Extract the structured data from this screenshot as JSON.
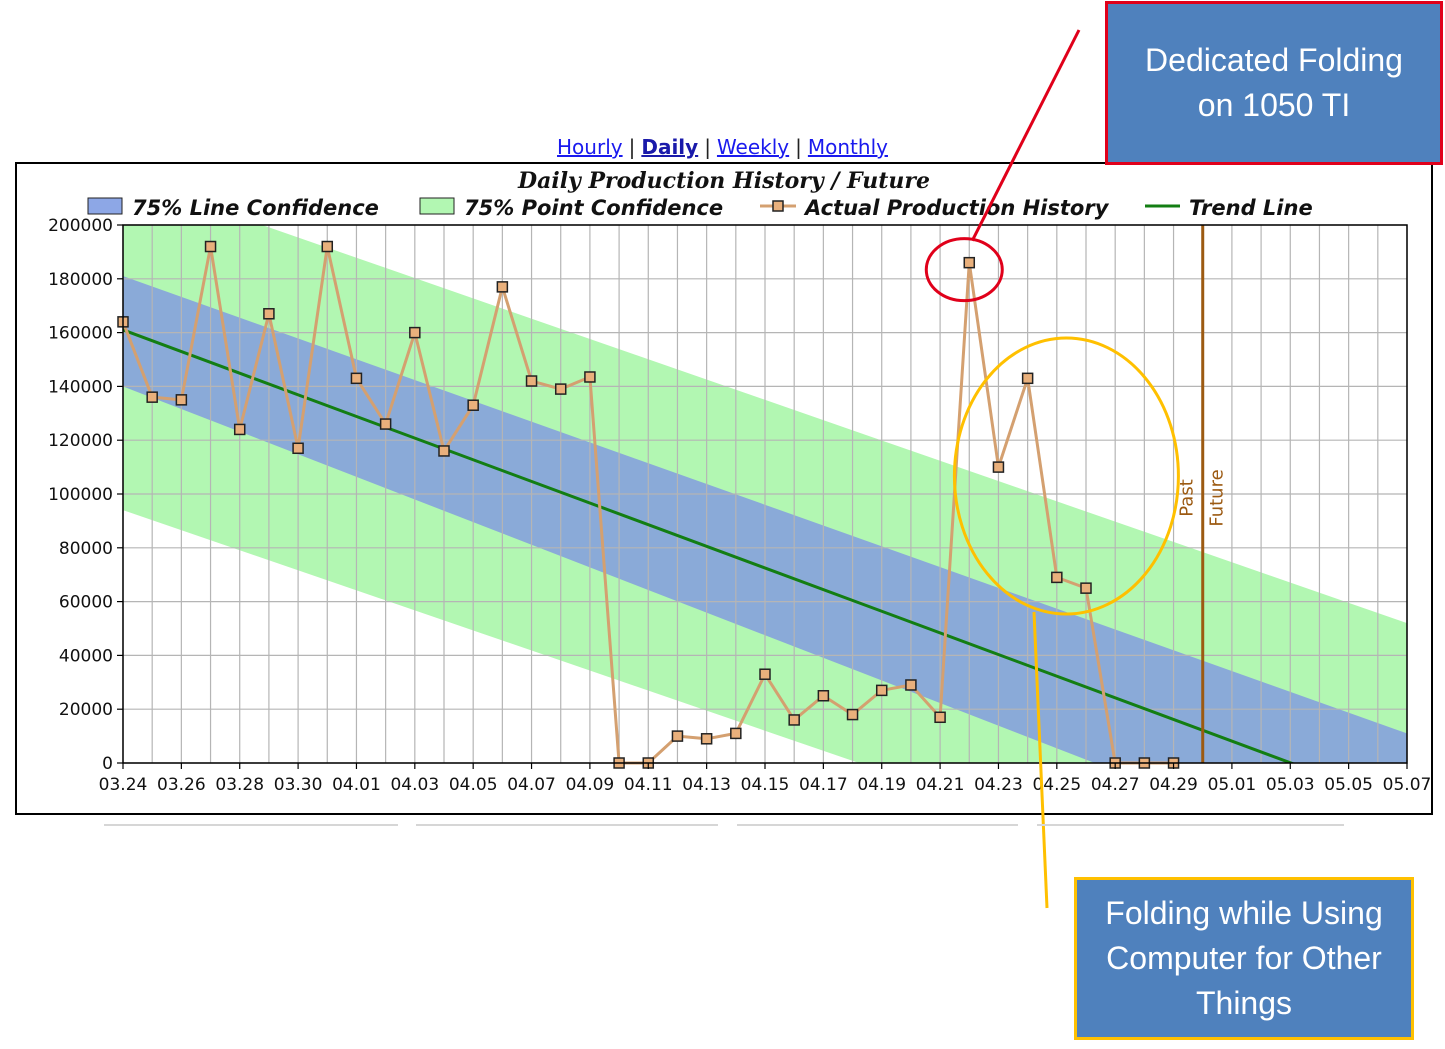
{
  "nav": {
    "items": [
      {
        "label": "Hourly",
        "active": false
      },
      {
        "label": "Daily",
        "active": true
      },
      {
        "label": "Weekly",
        "active": false
      },
      {
        "label": "Monthly",
        "active": false
      }
    ],
    "separator": "|"
  },
  "chart_data": {
    "type": "line",
    "title": "Daily Production History / Future",
    "legend_position": "top",
    "grid": true,
    "ylim": [
      0,
      200000
    ],
    "y_ticks": [
      0,
      20000,
      40000,
      60000,
      80000,
      100000,
      120000,
      140000,
      160000,
      180000,
      200000
    ],
    "x_tick_labels": [
      "03.24",
      "03.26",
      "03.28",
      "03.30",
      "04.01",
      "04.03",
      "04.05",
      "04.07",
      "04.09",
      "04.11",
      "04.13",
      "04.15",
      "04.17",
      "04.19",
      "04.21",
      "04.23",
      "04.25",
      "04.27",
      "04.29",
      "05.01",
      "05.03",
      "05.05",
      "05.07"
    ],
    "x_range_days": [
      0,
      44
    ],
    "legend": [
      {
        "key": "line_conf",
        "label": "75% Line Confidence",
        "color": "#8da7e6"
      },
      {
        "key": "point_conf",
        "label": "75% Point Confidence",
        "color": "#b2f7b2"
      },
      {
        "key": "history",
        "label": "Actual Production History",
        "color": "#d4a070"
      },
      {
        "key": "trend",
        "label": "Trend Line",
        "color": "#137e13"
      }
    ],
    "series": [
      {
        "name": "Actual Production History",
        "dates": [
          "03.24",
          "03.25",
          "03.26",
          "03.27",
          "03.28",
          "03.29",
          "03.30",
          "03.31",
          "04.01",
          "04.02",
          "04.03",
          "04.04",
          "04.05",
          "04.06",
          "04.07",
          "04.08",
          "04.09",
          "04.10",
          "04.11",
          "04.12",
          "04.13",
          "04.14",
          "04.15",
          "04.16",
          "04.17",
          "04.18",
          "04.19",
          "04.20",
          "04.21",
          "04.22",
          "04.23",
          "04.24",
          "04.25",
          "04.26",
          "04.27",
          "04.28",
          "04.29"
        ],
        "values": [
          164000,
          136000,
          135000,
          192000,
          124000,
          167000,
          117000,
          192000,
          143000,
          126000,
          160000,
          116000,
          133000,
          177000,
          142000,
          139000,
          143500,
          0,
          0,
          10000,
          9000,
          11000,
          33000,
          16000,
          25000,
          18000,
          27000,
          29000,
          17000,
          186000,
          110000,
          143000,
          69000,
          65000,
          0,
          0,
          0
        ]
      },
      {
        "name": "Trend Line",
        "start": {
          "date": "03.24",
          "value": 161000
        },
        "end": {
          "date": "05.03",
          "value": 0
        },
        "end_at_edge": {
          "date": "05.07",
          "value": -16000
        }
      },
      {
        "name": "75% Line Confidence",
        "upper_start": 181000,
        "upper_end": 11000,
        "lower_start": 140000,
        "lower_end": -45000
      },
      {
        "name": "75% Point Confidence",
        "upper_start": 218000,
        "upper_end": 52000,
        "lower_start": 94000,
        "lower_end": -70000
      }
    ],
    "marker": {
      "date": "04.30",
      "label_left": "Past",
      "label_right": "Future",
      "color": "#9c5a12"
    }
  },
  "annotations": {
    "red": {
      "text_line1": "Dedicated Folding",
      "text_line2": "on 1050 TI",
      "color": "#e0001a",
      "target_date": "04.22",
      "target_value": 186000
    },
    "yellow": {
      "text_line1": "Folding while Using",
      "text_line2": "Computer for Other",
      "text_line3": "Things",
      "color": "#ffc000",
      "target_dates": [
        "04.22",
        "04.29"
      ]
    }
  }
}
